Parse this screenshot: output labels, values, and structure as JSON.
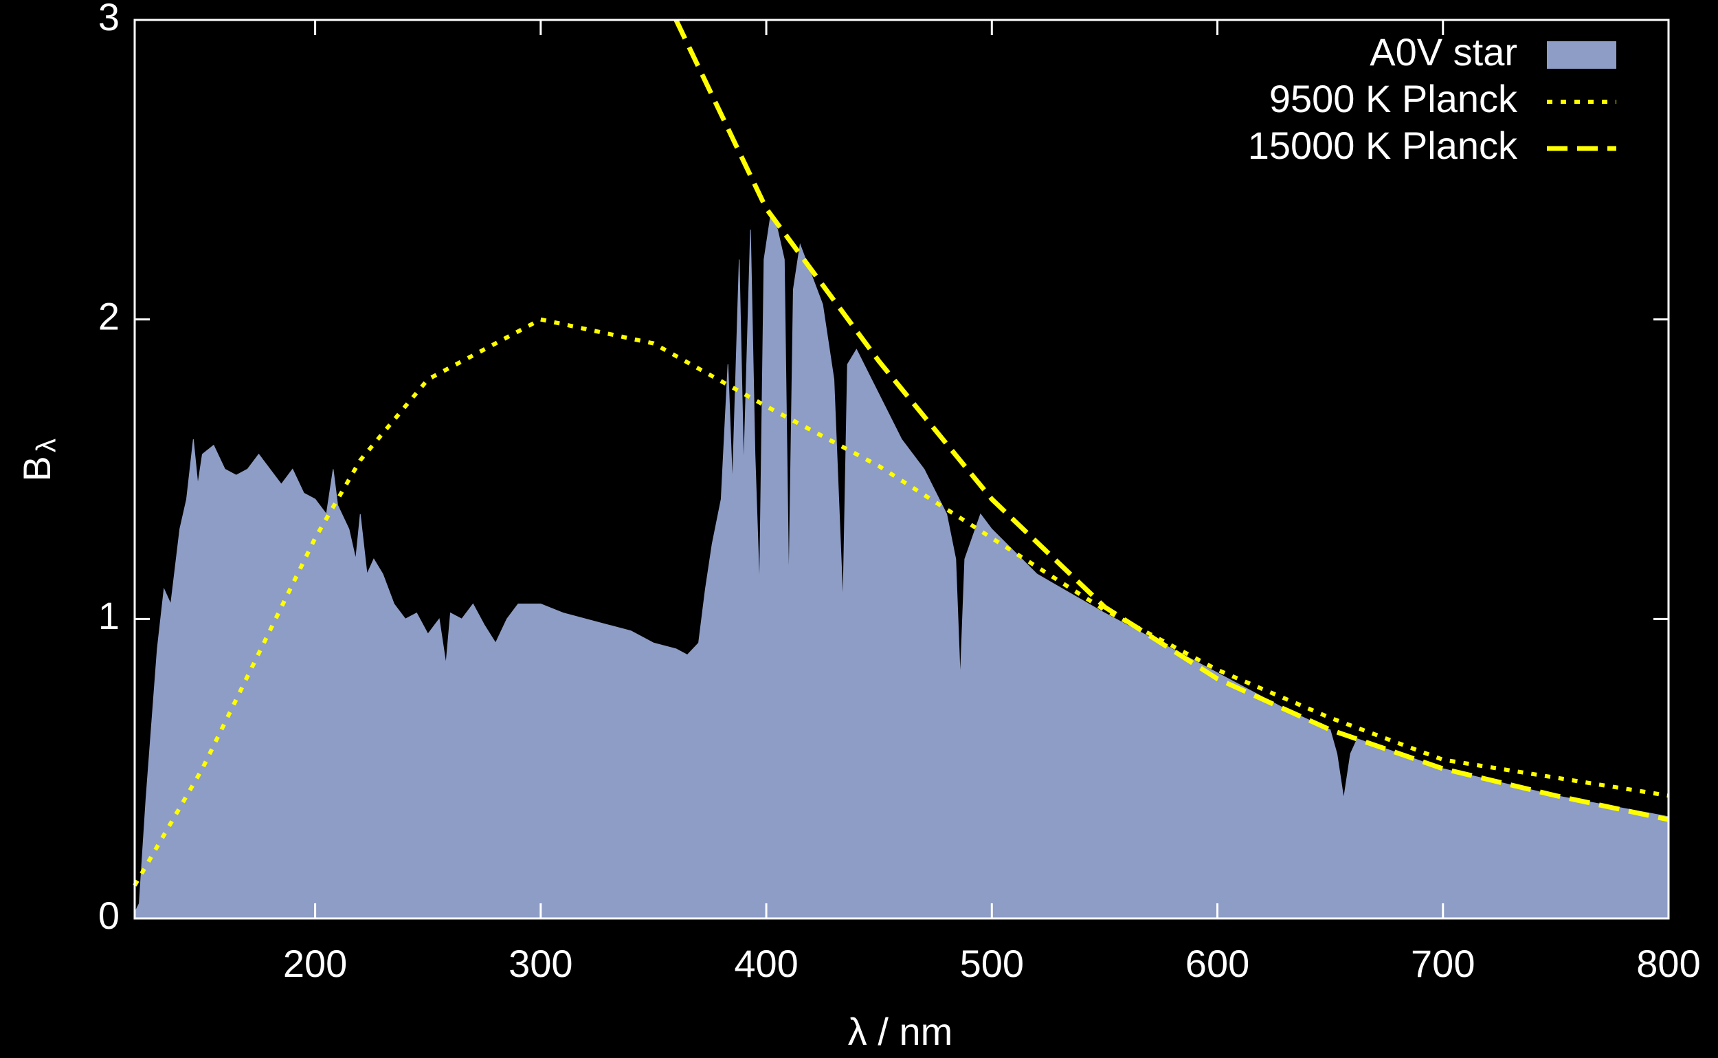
{
  "chart_data": {
    "type": "area_lines",
    "xlabel": "λ / nm",
    "ylabel": "B",
    "ylabel_sub": "λ",
    "xlim": [
      120,
      800
    ],
    "ylim": [
      0,
      3
    ],
    "xticks": [
      200,
      300,
      400,
      500,
      600,
      700,
      800
    ],
    "yticks": [
      0,
      1,
      2,
      3
    ],
    "legend": "upper right",
    "series": [
      {
        "name": "A0V star",
        "kind": "area",
        "color": "#8e9dc6",
        "x": [
          120,
          122,
          125,
          127,
          130,
          133,
          136,
          140,
          143,
          146,
          148,
          150,
          155,
          160,
          165,
          170,
          175,
          180,
          185,
          190,
          195,
          200,
          205,
          208,
          210,
          215,
          218,
          220,
          223,
          226,
          230,
          235,
          240,
          245,
          250,
          255,
          258,
          260,
          265,
          270,
          275,
          280,
          285,
          290,
          300,
          310,
          320,
          330,
          340,
          350,
          360,
          365,
          370,
          373,
          376,
          380,
          383,
          385,
          388,
          390,
          393,
          395,
          397,
          399,
          402,
          405,
          408,
          410,
          412,
          415,
          420,
          425,
          430,
          434,
          436,
          440,
          450,
          460,
          470,
          480,
          484,
          486,
          488,
          495,
          500,
          520,
          550,
          580,
          600,
          630,
          650,
          653,
          656,
          659,
          662,
          700,
          750,
          800
        ],
        "values": [
          0.02,
          0.05,
          0.4,
          0.6,
          0.9,
          1.1,
          1.05,
          1.3,
          1.4,
          1.6,
          1.45,
          1.55,
          1.58,
          1.5,
          1.48,
          1.5,
          1.55,
          1.5,
          1.45,
          1.5,
          1.42,
          1.4,
          1.35,
          1.5,
          1.38,
          1.3,
          1.2,
          1.35,
          1.15,
          1.2,
          1.15,
          1.05,
          1.0,
          1.02,
          0.95,
          1.0,
          0.85,
          1.02,
          1.0,
          1.05,
          0.98,
          0.92,
          1.0,
          1.05,
          1.05,
          1.02,
          1.0,
          0.98,
          0.96,
          0.92,
          0.9,
          0.88,
          0.92,
          1.1,
          1.25,
          1.4,
          1.85,
          1.45,
          2.2,
          1.5,
          2.3,
          1.55,
          1.1,
          2.2,
          2.35,
          2.3,
          2.2,
          1.1,
          2.1,
          2.25,
          2.15,
          2.05,
          1.8,
          1.05,
          1.85,
          1.9,
          1.75,
          1.6,
          1.5,
          1.35,
          1.2,
          0.8,
          1.2,
          1.35,
          1.3,
          1.15,
          1.02,
          0.9,
          0.82,
          0.7,
          0.63,
          0.55,
          0.4,
          0.55,
          0.6,
          0.5,
          0.41,
          0.34
        ]
      },
      {
        "name": "9500 K Planck",
        "kind": "dotted",
        "color": "#ffff00",
        "x": [
          120,
          150,
          200,
          220,
          250,
          300,
          350,
          400,
          450,
          500,
          550,
          600,
          650,
          700,
          750,
          800
        ],
        "values": [
          0.11,
          0.5,
          1.27,
          1.53,
          1.8,
          2.0,
          1.92,
          1.71,
          1.51,
          1.27,
          1.03,
          0.83,
          0.67,
          0.53,
          0.47,
          0.41
        ]
      },
      {
        "name": "15000 K Planck",
        "kind": "dashed",
        "color": "#ffff00",
        "x": [
          360,
          400,
          450,
          500,
          550,
          600,
          650,
          700,
          750,
          800
        ],
        "values": [
          3.0,
          2.37,
          1.86,
          1.4,
          1.04,
          0.8,
          0.63,
          0.5,
          0.41,
          0.33
        ]
      }
    ]
  }
}
